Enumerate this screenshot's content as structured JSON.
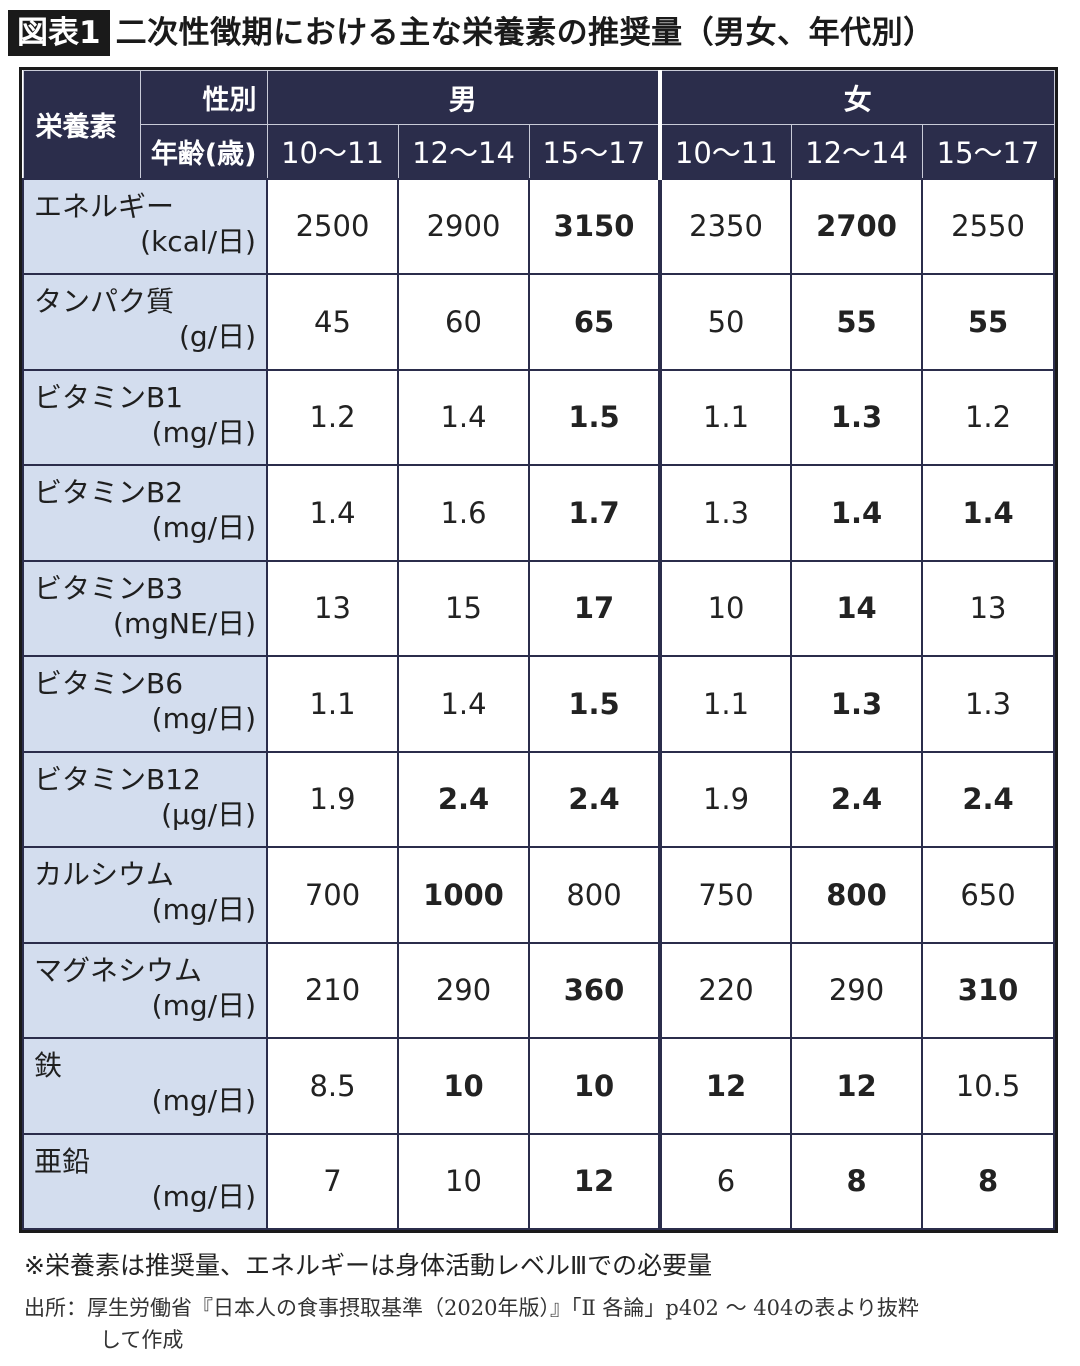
{
  "header": {
    "figure_label": "図表1",
    "title": "二次性徴期における主な栄養素の推奨量（男女、年代別）"
  },
  "table": {
    "corner_label": "栄養素",
    "sex_label": "性別",
    "age_label": "年齢(歳)",
    "male_label": "男",
    "female_label": "女",
    "age_groups": [
      "10〜11",
      "12〜14",
      "15〜17",
      "10〜11",
      "12〜14",
      "15〜17"
    ],
    "rows": [
      {
        "name": "エネルギー",
        "unit": "(kcal/日)",
        "values": [
          "2500",
          "2900",
          "3150",
          "2350",
          "2700",
          "2550"
        ],
        "bold": [
          false,
          false,
          true,
          false,
          true,
          false
        ]
      },
      {
        "name": "タンパク質",
        "unit": "(g/日)",
        "values": [
          "45",
          "60",
          "65",
          "50",
          "55",
          "55"
        ],
        "bold": [
          false,
          false,
          true,
          false,
          true,
          true
        ]
      },
      {
        "name": "ビタミンB1",
        "unit": "(mg/日)",
        "values": [
          "1.2",
          "1.4",
          "1.5",
          "1.1",
          "1.3",
          "1.2"
        ],
        "bold": [
          false,
          false,
          true,
          false,
          true,
          false
        ]
      },
      {
        "name": "ビタミンB2",
        "unit": "(mg/日)",
        "values": [
          "1.4",
          "1.6",
          "1.7",
          "1.3",
          "1.4",
          "1.4"
        ],
        "bold": [
          false,
          false,
          true,
          false,
          true,
          true
        ]
      },
      {
        "name": "ビタミンB3",
        "unit": "(mgNE/日)",
        "values": [
          "13",
          "15",
          "17",
          "10",
          "14",
          "13"
        ],
        "bold": [
          false,
          false,
          true,
          false,
          true,
          false
        ]
      },
      {
        "name": "ビタミンB6",
        "unit": "(mg/日)",
        "values": [
          "1.1",
          "1.4",
          "1.5",
          "1.1",
          "1.3",
          "1.3"
        ],
        "bold": [
          false,
          false,
          true,
          false,
          true,
          false
        ]
      },
      {
        "name": "ビタミンB12",
        "unit": "(μg/日)",
        "values": [
          "1.9",
          "2.4",
          "2.4",
          "1.9",
          "2.4",
          "2.4"
        ],
        "bold": [
          false,
          true,
          true,
          false,
          true,
          true
        ]
      },
      {
        "name": "カルシウム",
        "unit": "(mg/日)",
        "values": [
          "700",
          "1000",
          "800",
          "750",
          "800",
          "650"
        ],
        "bold": [
          false,
          true,
          false,
          false,
          true,
          false
        ]
      },
      {
        "name": "マグネシウム",
        "unit": "(mg/日)",
        "values": [
          "210",
          "290",
          "360",
          "220",
          "290",
          "310"
        ],
        "bold": [
          false,
          false,
          true,
          false,
          false,
          true
        ]
      },
      {
        "name": "鉄",
        "unit": "(mg/日)",
        "values": [
          "8.5",
          "10",
          "10",
          "12",
          "12",
          "10.5"
        ],
        "bold": [
          false,
          true,
          true,
          true,
          true,
          false
        ]
      },
      {
        "name": "亜鉛",
        "unit": "(mg/日)",
        "values": [
          "7",
          "10",
          "12",
          "6",
          "8",
          "8"
        ],
        "bold": [
          false,
          false,
          true,
          false,
          true,
          true
        ]
      }
    ]
  },
  "notes": {
    "note": "※栄養素は推奨量、エネルギーは身体活動レベルⅢでの必要量",
    "source_line1": "出所：厚生労働省『日本人の食事摂取基準（2020年版）』「Ⅱ 各論」p402 〜 404の表より抜粋",
    "source_line2": "して作成"
  }
}
